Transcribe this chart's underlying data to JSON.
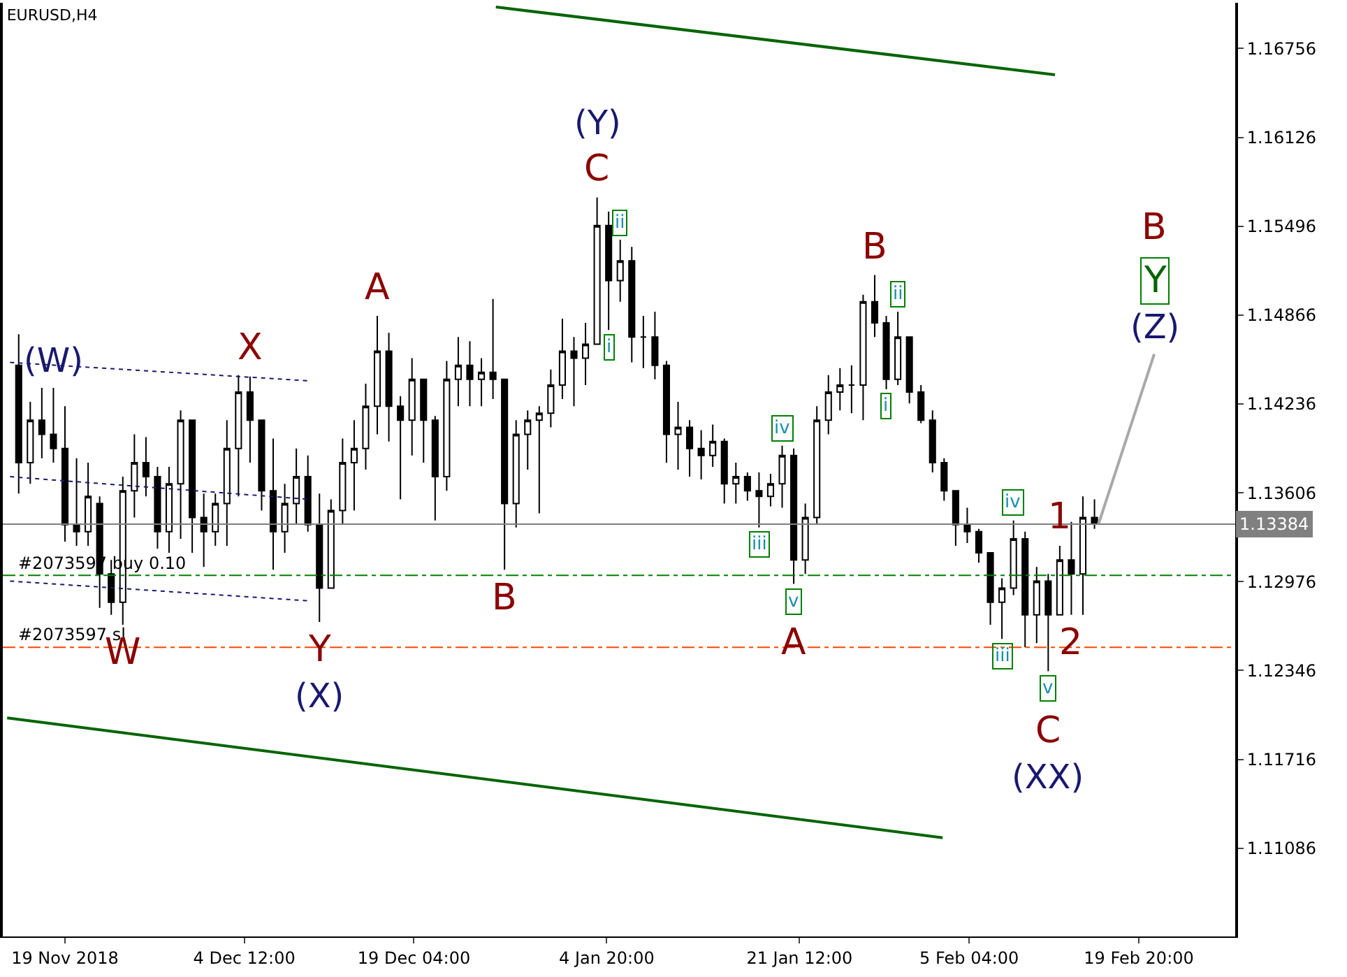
{
  "chart_data": {
    "type": "candlestick",
    "title": "EURUSD,H4",
    "color": "#000000",
    "x": [
      "2018-11-15",
      "2018-11-16",
      "2018-11-17",
      "2018-11-18",
      "2018-11-19",
      "2018-11-20",
      "2018-11-21",
      "2018-11-22",
      "2018-11-23",
      "2018-11-24",
      "2018-11-25",
      "2018-11-26",
      "2018-11-27",
      "2018-11-28",
      "2018-11-29",
      "2018-11-30",
      "2018-12-01",
      "2018-12-02",
      "2018-12-03",
      "2018-12-04",
      "2018-12-05",
      "2018-12-06",
      "2018-12-07",
      "2018-12-08",
      "2018-12-09",
      "2018-12-10",
      "2018-12-11",
      "2018-12-12",
      "2018-12-13",
      "2018-12-14",
      "2018-12-15",
      "2018-12-16",
      "2018-12-17",
      "2018-12-18",
      "2018-12-19",
      "2018-12-20",
      "2018-12-21",
      "2018-12-22",
      "2018-12-23",
      "2018-12-24",
      "2018-12-25",
      "2018-12-26",
      "2018-12-27",
      "2018-12-28",
      "2018-12-29",
      "2018-12-30",
      "2018-12-31",
      "2019-01-01",
      "2019-01-02",
      "2019-01-03",
      "2019-01-04",
      "2019-01-05",
      "2019-01-06",
      "2019-01-07",
      "2019-01-08",
      "2019-01-09",
      "2019-01-10",
      "2019-01-11",
      "2019-01-12",
      "2019-01-13",
      "2019-01-14",
      "2019-01-15",
      "2019-01-16",
      "2019-01-17",
      "2019-01-18",
      "2019-01-19",
      "2019-01-20",
      "2019-01-21",
      "2019-01-22",
      "2019-01-23",
      "2019-01-24",
      "2019-01-25",
      "2019-01-26",
      "2019-01-27",
      "2019-01-28",
      "2019-01-29",
      "2019-01-30",
      "2019-01-31",
      "2019-02-01",
      "2019-02-02",
      "2019-02-03",
      "2019-02-04",
      "2019-02-05",
      "2019-02-06",
      "2019-02-07",
      "2019-02-08",
      "2019-02-09",
      "2019-02-10",
      "2019-02-11",
      "2019-02-12",
      "2019-02-13",
      "2019-02-14",
      "2019-02-15",
      "2019-02-16"
    ],
    "ohlc": [
      [
        1.1451,
        1.1473,
        1.136,
        1.1382
      ],
      [
        1.1382,
        1.1425,
        1.1367,
        1.1412
      ],
      [
        1.1412,
        1.1435,
        1.1385,
        1.1402
      ],
      [
        1.1402,
        1.1435,
        1.1382,
        1.1392
      ],
      [
        1.1392,
        1.1422,
        1.1326,
        1.1338
      ],
      [
        1.1338,
        1.1385,
        1.1323,
        1.1333
      ],
      [
        1.1333,
        1.1382,
        1.1323,
        1.1358
      ],
      [
        1.1353,
        1.1358,
        1.1279,
        1.1303
      ],
      [
        1.1303,
        1.1313,
        1.1274,
        1.1283
      ],
      [
        1.1283,
        1.1372,
        1.1267,
        1.1362
      ],
      [
        1.1362,
        1.1402,
        1.1343,
        1.1382
      ],
      [
        1.1382,
        1.14,
        1.1358,
        1.1372
      ],
      [
        1.1372,
        1.1379,
        1.1321,
        1.1333
      ],
      [
        1.1333,
        1.1379,
        1.1318,
        1.1367
      ],
      [
        1.1367,
        1.1419,
        1.1328,
        1.1412
      ],
      [
        1.1412,
        1.1412,
        1.1318,
        1.1343
      ],
      [
        1.1343,
        1.136,
        1.1308,
        1.1333
      ],
      [
        1.1333,
        1.136,
        1.1323,
        1.1353
      ],
      [
        1.1353,
        1.1412,
        1.1323,
        1.1392
      ],
      [
        1.1392,
        1.1444,
        1.1358,
        1.1432
      ],
      [
        1.1432,
        1.1443,
        1.1382,
        1.1412
      ],
      [
        1.1412,
        1.1412,
        1.1348,
        1.1362
      ],
      [
        1.1362,
        1.1399,
        1.1306,
        1.1333
      ],
      [
        1.1333,
        1.1367,
        1.1318,
        1.1353
      ],
      [
        1.1353,
        1.1392,
        1.1338,
        1.1372
      ],
      [
        1.1372,
        1.1387,
        1.1333,
        1.1338
      ],
      [
        1.1338,
        1.136,
        1.1269,
        1.1293
      ],
      [
        1.1293,
        1.1356,
        1.1293,
        1.1348
      ],
      [
        1.1348,
        1.1399,
        1.1338,
        1.1382
      ],
      [
        1.1382,
        1.1412,
        1.1348,
        1.1392
      ],
      [
        1.1392,
        1.1438,
        1.1377,
        1.1422
      ],
      [
        1.1422,
        1.1486,
        1.1402,
        1.1461
      ],
      [
        1.1461,
        1.1474,
        1.1397,
        1.1422
      ],
      [
        1.1422,
        1.1429,
        1.1356,
        1.1412
      ],
      [
        1.1412,
        1.1456,
        1.1387,
        1.1441
      ],
      [
        1.1441,
        1.1441,
        1.1382,
        1.1412
      ],
      [
        1.1412,
        1.1415,
        1.1341,
        1.1372
      ],
      [
        1.1372,
        1.1454,
        1.1362,
        1.1441
      ],
      [
        1.1441,
        1.1471,
        1.1422,
        1.1451
      ],
      [
        1.1451,
        1.1468,
        1.1422,
        1.1441
      ],
      [
        1.1441,
        1.1456,
        1.1422,
        1.1446
      ],
      [
        1.1446,
        1.1498,
        1.1427,
        1.1441
      ],
      [
        1.1441,
        1.1441,
        1.1306,
        1.1353
      ],
      [
        1.1353,
        1.1412,
        1.1336,
        1.1402
      ],
      [
        1.1402,
        1.1419,
        1.1377,
        1.1412
      ],
      [
        1.1412,
        1.1422,
        1.1346,
        1.1417
      ],
      [
        1.1417,
        1.1448,
        1.1407,
        1.1437
      ],
      [
        1.1437,
        1.1484,
        1.1427,
        1.1461
      ],
      [
        1.1461,
        1.1471,
        1.1422,
        1.1456
      ],
      [
        1.1456,
        1.1481,
        1.1437,
        1.1466
      ],
      [
        1.1466,
        1.157,
        1.1466,
        1.155
      ],
      [
        1.155,
        1.156,
        1.1476,
        1.1511
      ],
      [
        1.1511,
        1.154,
        1.1496,
        1.1525
      ],
      [
        1.1525,
        1.1535,
        1.1453,
        1.1471
      ],
      [
        1.1471,
        1.1486,
        1.1449,
        1.1471
      ],
      [
        1.1471,
        1.1489,
        1.1441,
        1.1451
      ],
      [
        1.1451,
        1.1454,
        1.1382,
        1.1402
      ],
      [
        1.1402,
        1.1425,
        1.1377,
        1.1407
      ],
      [
        1.1407,
        1.1412,
        1.1372,
        1.1392
      ],
      [
        1.1392,
        1.1405,
        1.137,
        1.1387
      ],
      [
        1.1387,
        1.1409,
        1.1379,
        1.1397
      ],
      [
        1.1397,
        1.1399,
        1.1353,
        1.1367
      ],
      [
        1.1367,
        1.1382,
        1.1353,
        1.1372
      ],
      [
        1.1372,
        1.1375,
        1.1355,
        1.1362
      ],
      [
        1.1362,
        1.1375,
        1.1336,
        1.1358
      ],
      [
        1.1358,
        1.1374,
        1.1351,
        1.1367
      ],
      [
        1.1367,
        1.1394,
        1.135,
        1.1387
      ],
      [
        1.1387,
        1.1392,
        1.1296,
        1.1313
      ],
      [
        1.1313,
        1.1353,
        1.1303,
        1.1343
      ],
      [
        1.1343,
        1.1422,
        1.1338,
        1.1412
      ],
      [
        1.1412,
        1.1444,
        1.1402,
        1.1432
      ],
      [
        1.1432,
        1.1449,
        1.1419,
        1.1437
      ],
      [
        1.1437,
        1.1451,
        1.1417,
        1.1437
      ],
      [
        1.1437,
        1.1501,
        1.1412,
        1.1496
      ],
      [
        1.1496,
        1.1515,
        1.1471,
        1.1481
      ],
      [
        1.1481,
        1.1486,
        1.1434,
        1.1441
      ],
      [
        1.1441,
        1.1489,
        1.1437,
        1.1471
      ],
      [
        1.1471,
        1.1471,
        1.1424,
        1.1432
      ],
      [
        1.1432,
        1.1437,
        1.141,
        1.1412
      ],
      [
        1.1412,
        1.1419,
        1.1375,
        1.1382
      ],
      [
        1.1382,
        1.1385,
        1.1355,
        1.1362
      ],
      [
        1.1362,
        1.1362,
        1.1323,
        1.1338
      ],
      [
        1.1338,
        1.135,
        1.1325,
        1.1333
      ],
      [
        1.1333,
        1.1335,
        1.1311,
        1.1318
      ],
      [
        1.1318,
        1.1318,
        1.1267,
        1.1283
      ],
      [
        1.1283,
        1.13,
        1.1257,
        1.1293
      ],
      [
        1.1293,
        1.1341,
        1.1288,
        1.1328
      ],
      [
        1.1328,
        1.1333,
        1.1251,
        1.1274
      ],
      [
        1.1274,
        1.1308,
        1.1254,
        1.1298
      ],
      [
        1.1298,
        1.1303,
        1.1234,
        1.1274
      ],
      [
        1.1274,
        1.1323,
        1.1274,
        1.1313
      ],
      [
        1.1313,
        1.134,
        1.1274,
        1.1303
      ],
      [
        1.1303,
        1.1358,
        1.1274,
        1.1343
      ],
      [
        1.1343,
        1.1356,
        1.1335,
        1.1339
      ]
    ],
    "series": [
      {
        "type": "line",
        "color": "#006400",
        "x": [
          "2018-12-26T06:00",
          "2019-02-12T14:00"
        ],
        "values": [
          1.1705,
          1.1657
        ]
      },
      {
        "type": "line",
        "color": "#006400",
        "x": [
          "2018-11-14",
          "2019-02-02T21:00"
        ],
        "values": [
          1.1201,
          1.1116
        ]
      },
      {
        "type": "line",
        "color": "#191970",
        "line_style": "dotted",
        "x": [
          "2018-11-14T06:00",
          "2018-12-10"
        ],
        "values": [
          1.1453,
          1.144
        ]
      },
      {
        "type": "line",
        "color": "#191970",
        "line_style": "dotted",
        "x": [
          "2018-11-14T06:00",
          "2018-12-10"
        ],
        "values": [
          1.1372,
          1.1356
        ]
      },
      {
        "type": "line",
        "color": "#191970",
        "line_style": "dotted",
        "x": [
          "2018-11-14T06:00",
          "2018-12-10"
        ],
        "values": [
          1.1298,
          1.1284
        ]
      },
      {
        "type": "line",
        "color": "#a9a9a9",
        "x": [
          "2019-02-16T08:00",
          "2019-02-21T04:00"
        ],
        "values": [
          1.1338,
          1.1459
        ]
      }
    ],
    "xlim": [
      "2018-11-13T15:00",
      "2019-02-28T04:00"
    ],
    "xticks": [
      {
        "value": "2018-11-19T00:00",
        "label": "19 Nov 2018"
      },
      {
        "value": "2018-12-04T12:00",
        "label": "4 Dec 12:00"
      },
      {
        "value": "2018-12-19T04:00",
        "label": "19 Dec 04:00"
      },
      {
        "value": "2019-01-04T20:00",
        "label": "4 Jan 20:00"
      },
      {
        "value": "2019-01-21T12:00",
        "label": "21 Jan 12:00"
      },
      {
        "value": "2019-02-05T04:00",
        "label": "5 Feb 04:00"
      },
      {
        "value": "2019-02-19T20:00",
        "label": "19 Feb 20:00"
      }
    ],
    "ylim": [
      1.1046,
      1.1708
    ],
    "yticks": [
      1.16756,
      1.16126,
      1.15496,
      1.14866,
      1.14236,
      1.13606,
      1.12976,
      1.12346,
      1.11716,
      1.11086
    ],
    "ref_lines": [
      {
        "axis": "y",
        "value": 1.13384,
        "label": "1.13384",
        "color": "#808080",
        "line_style": "solid"
      },
      {
        "axis": "y",
        "value": 1.1302,
        "label": "#2073597 buy 0.10",
        "color": "#008000",
        "line_style": "dashed"
      },
      {
        "axis": "y",
        "value": 1.1251,
        "label": "#2073597 sl",
        "color": "#ff4500",
        "line_style": "dashed"
      }
    ],
    "annotations": [
      {
        "text": "(W)",
        "x": "2018-11-18",
        "y": 1.1435
      },
      {
        "text": "W",
        "x": "2018-11-24",
        "y": 1.1267
      },
      {
        "text": "X",
        "x": "2018-12-05",
        "y": 1.1443
      },
      {
        "text": "Y",
        "x": "2018-12-11",
        "y": 1.1269
      },
      {
        "text": "(X)",
        "x": "2018-12-11",
        "y": 1.1269
      },
      {
        "text": "A",
        "x": "2018-12-16",
        "y": 1.1486
      },
      {
        "text": "B",
        "x": "2018-12-27",
        "y": 1.1306
      },
      {
        "text": "C",
        "x": "2019-01-04",
        "y": 1.157
      },
      {
        "text": "(Y)",
        "x": "2019-01-04",
        "y": 1.157
      },
      {
        "text": "ii",
        "x": "2019-01-06",
        "y": 1.154
      },
      {
        "text": "i",
        "x": "2019-01-05",
        "y": 1.1476
      },
      {
        "text": "iv",
        "x": "2019-01-20",
        "y": 1.1394
      },
      {
        "text": "iii",
        "x": "2019-01-18",
        "y": 1.1336
      },
      {
        "text": "v",
        "x": "2019-01-21",
        "y": 1.1296
      },
      {
        "text": "A",
        "x": "2019-01-21",
        "y": 1.1296
      },
      {
        "text": "B",
        "x": "2019-01-28",
        "y": 1.1515
      },
      {
        "text": "ii",
        "x": "2019-01-30",
        "y": 1.1489
      },
      {
        "text": "i",
        "x": "2019-01-29",
        "y": 1.1434
      },
      {
        "text": "iv",
        "x": "2019-02-09",
        "y": 1.1341
      },
      {
        "text": "iii",
        "x": "2019-02-08",
        "y": 1.1257
      },
      {
        "text": "v",
        "x": "2019-02-12",
        "y": 1.1234
      },
      {
        "text": "C",
        "x": "2019-02-12",
        "y": 1.1234
      },
      {
        "text": "(XX)",
        "x": "2019-02-12",
        "y": 1.1234
      },
      {
        "text": "1",
        "x": "2019-02-13",
        "y": 1.1323
      },
      {
        "text": "2",
        "x": "2019-02-14",
        "y": 1.1274
      },
      {
        "text": "(Z)",
        "x": "2019-02-21T04:00",
        "y": 1.1459
      },
      {
        "text": "Y",
        "x": "2019-02-21T04:00",
        "y": 1.1459
      },
      {
        "text": "B",
        "x": "2019-02-21T04:00",
        "y": 1.1459
      }
    ]
  }
}
